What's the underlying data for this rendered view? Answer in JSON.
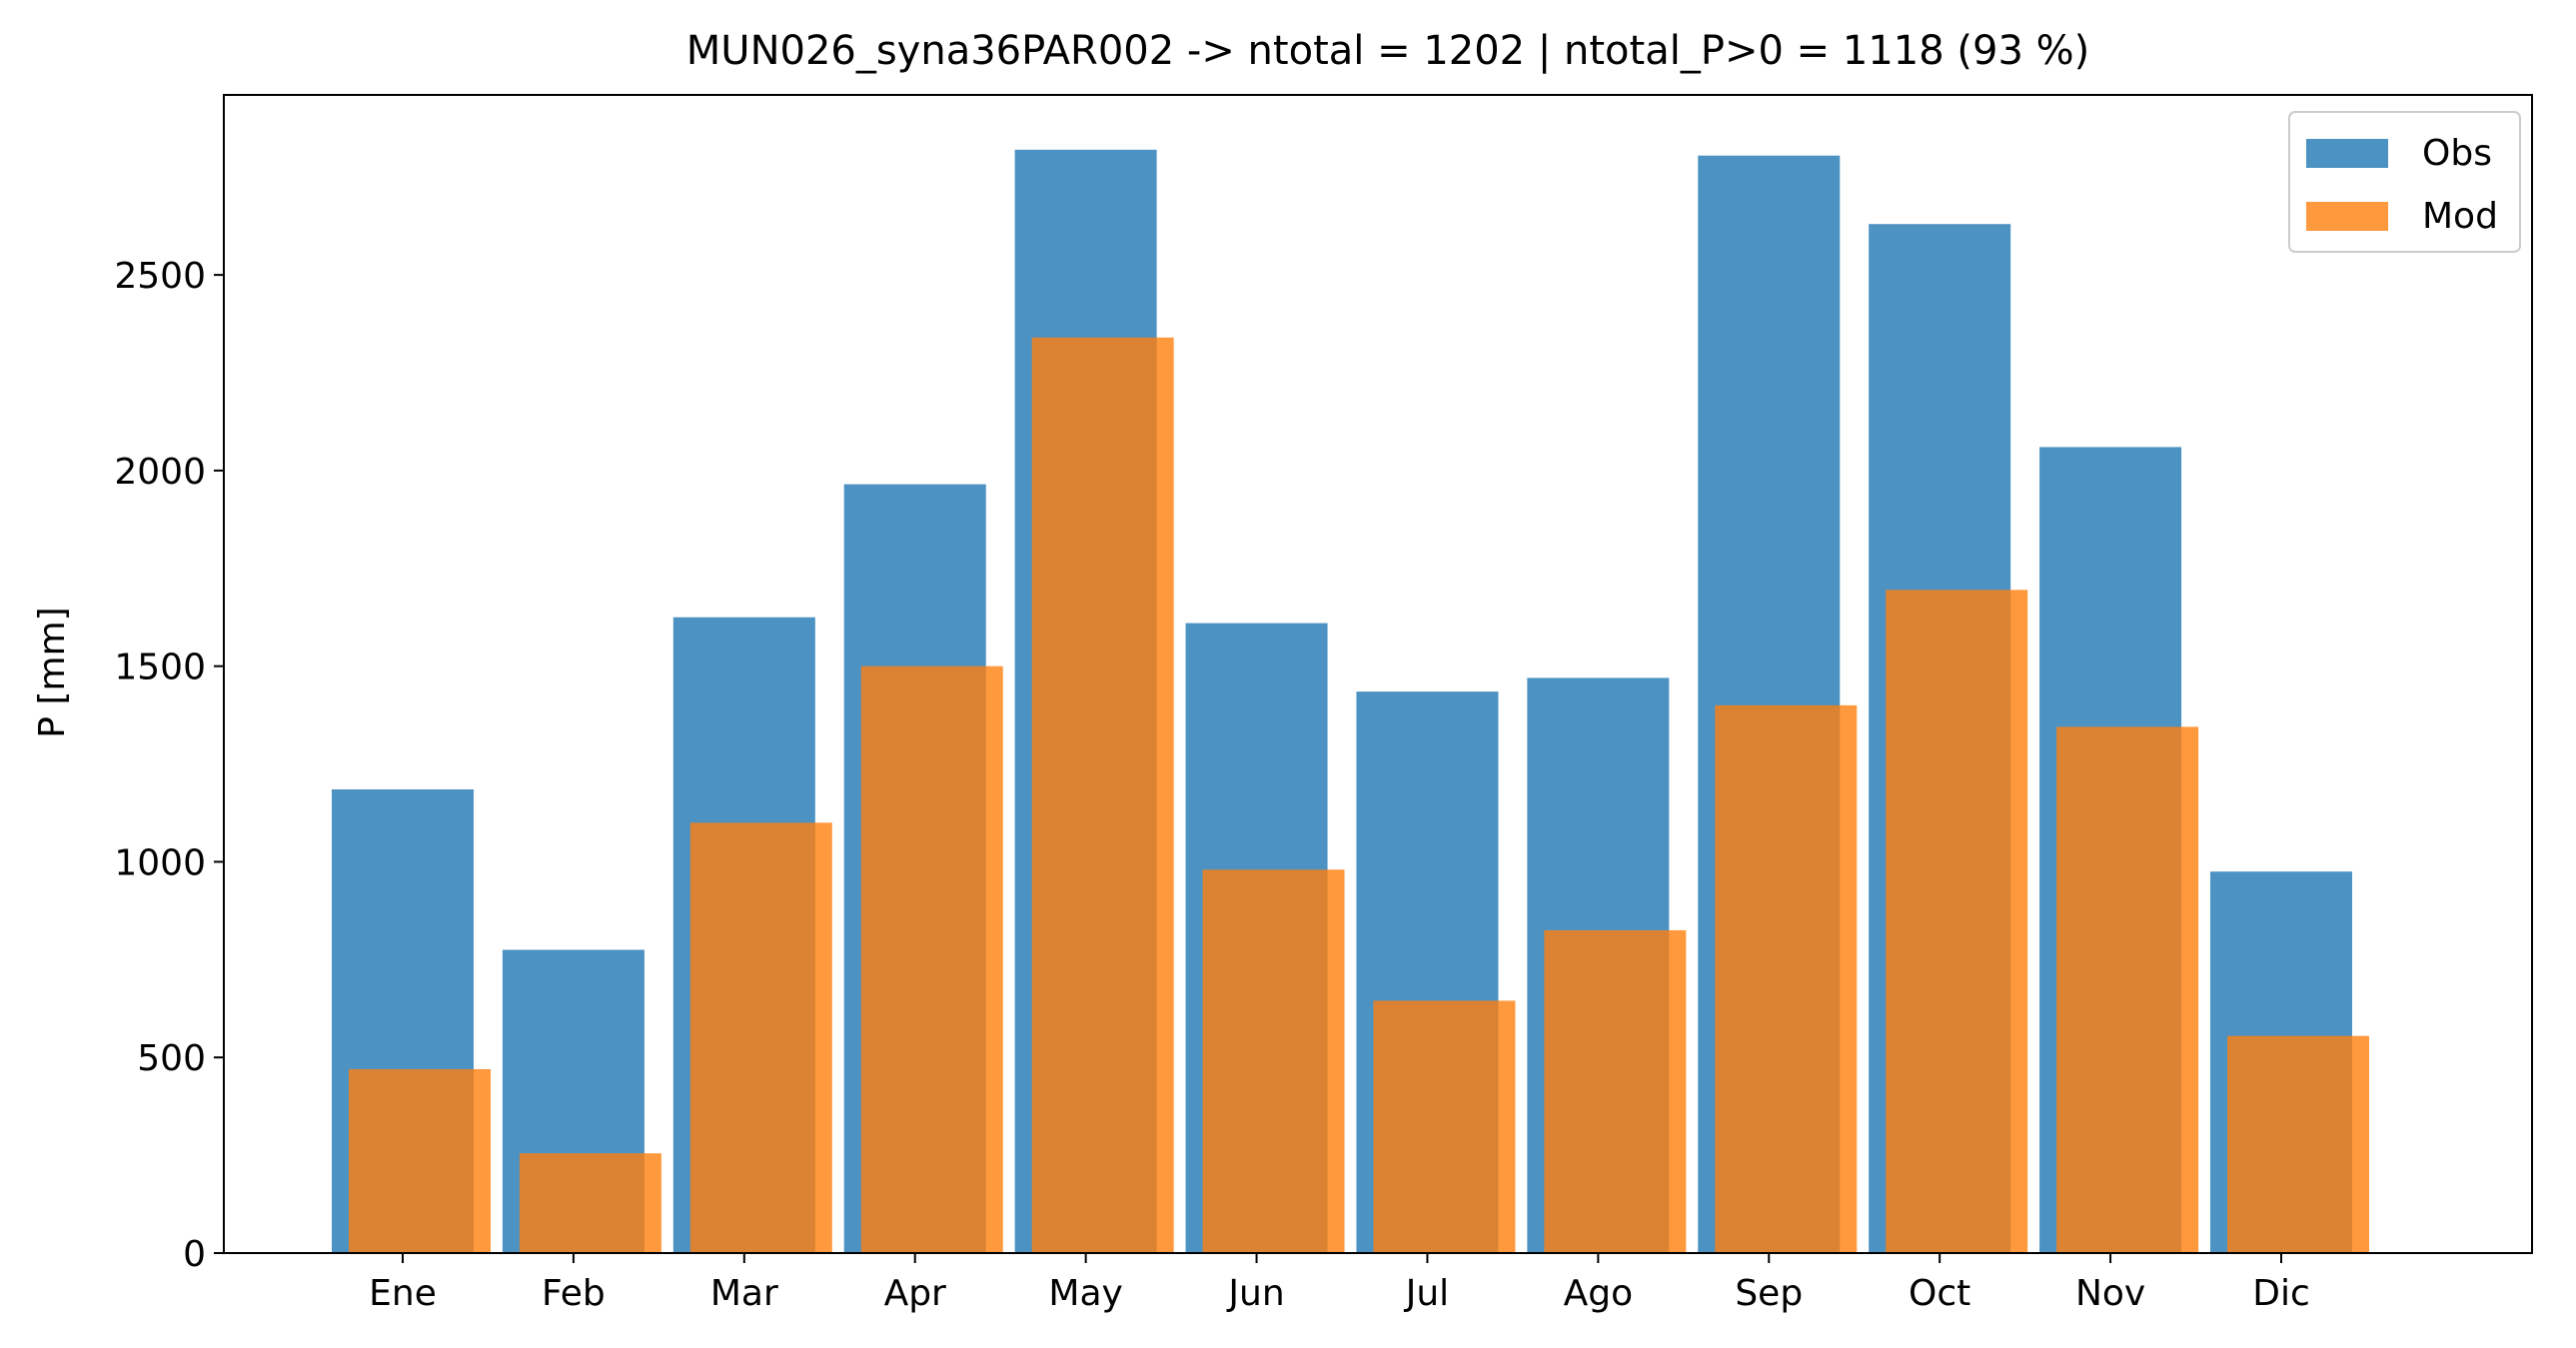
{
  "chart_data": {
    "type": "bar",
    "title": "MUN026_syna36PAR002 -> ntotal = 1202 | ntotal_P>0 = 1118 (93 %)",
    "xlabel": "",
    "ylabel": "P [mm]",
    "categories": [
      "Ene",
      "Feb",
      "Mar",
      "Apr",
      "May",
      "Jun",
      "Jul",
      "Ago",
      "Sep",
      "Oct",
      "Nov",
      "Dic"
    ],
    "yticks": [
      0,
      500,
      1000,
      1500,
      2000,
      2500
    ],
    "ylim": [
      0,
      2960
    ],
    "grid": false,
    "legend_position": "top-right",
    "series": [
      {
        "name": "Obs",
        "color": "#1f77b4",
        "opacity": 0.8,
        "values": [
          1185,
          775,
          1625,
          1965,
          2820,
          1610,
          1435,
          1470,
          2805,
          2630,
          2060,
          975
        ]
      },
      {
        "name": "Mod",
        "color": "#ff7f0e",
        "opacity": 0.8,
        "values": [
          470,
          255,
          1100,
          1500,
          2340,
          980,
          645,
          825,
          1400,
          1695,
          1345,
          555
        ]
      }
    ]
  }
}
